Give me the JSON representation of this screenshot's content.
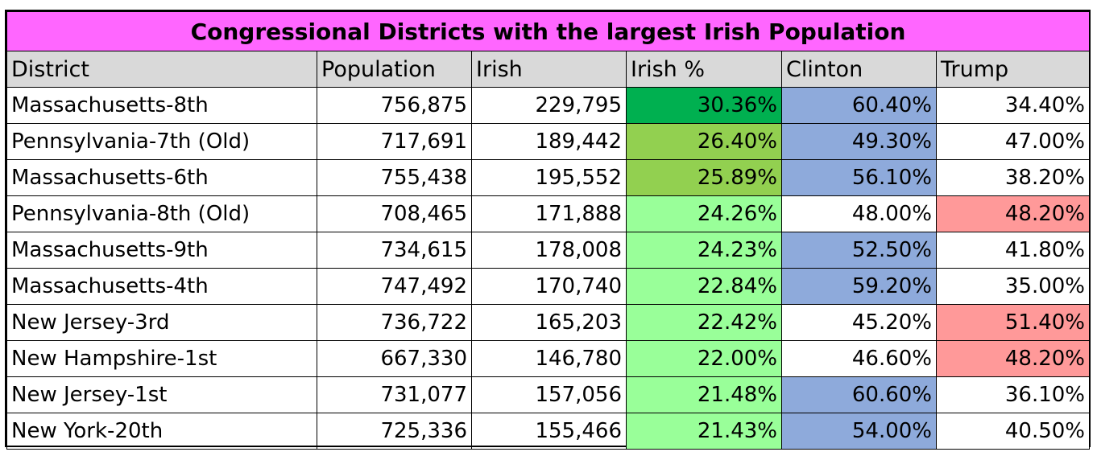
{
  "title": "Congressional Districts with the largest Irish Population",
  "columns": [
    "District",
    "Population",
    "Irish",
    "Irish %",
    "Clinton",
    "Trump"
  ],
  "colors": {
    "title_bg": "#ff66ff",
    "header_bg": "#d9d9d9",
    "irish_dark_green": "#00b050",
    "irish_mid_green": "#92d050",
    "irish_light_green": "#99ff99",
    "clinton_blue": "#8eaadb",
    "trump_red": "#ff9999",
    "plain": "#ffffff"
  },
  "rows": [
    {
      "district": "Massachusetts-8th",
      "population": "756,875",
      "irish": "229,795",
      "irish_pct": "30.36%",
      "clinton": "60.40%",
      "trump": "34.40%",
      "irish_color": "#00b050",
      "clinton_color": "#8eaadb",
      "trump_color": "#ffffff"
    },
    {
      "district": "Pennsylvania-7th (Old)",
      "population": "717,691",
      "irish": "189,442",
      "irish_pct": "26.40%",
      "clinton": "49.30%",
      "trump": "47.00%",
      "irish_color": "#92d050",
      "clinton_color": "#8eaadb",
      "trump_color": "#ffffff"
    },
    {
      "district": "Massachusetts-6th",
      "population": "755,438",
      "irish": "195,552",
      "irish_pct": "25.89%",
      "clinton": "56.10%",
      "trump": "38.20%",
      "irish_color": "#92d050",
      "clinton_color": "#8eaadb",
      "trump_color": "#ffffff"
    },
    {
      "district": "Pennsylvania-8th (Old)",
      "population": "708,465",
      "irish": "171,888",
      "irish_pct": "24.26%",
      "clinton": "48.00%",
      "trump": "48.20%",
      "irish_color": "#99ff99",
      "clinton_color": "#ffffff",
      "trump_color": "#ff9999"
    },
    {
      "district": "Massachusetts-9th",
      "population": "734,615",
      "irish": "178,008",
      "irish_pct": "24.23%",
      "clinton": "52.50%",
      "trump": "41.80%",
      "irish_color": "#99ff99",
      "clinton_color": "#8eaadb",
      "trump_color": "#ffffff"
    },
    {
      "district": "Massachusetts-4th",
      "population": "747,492",
      "irish": "170,740",
      "irish_pct": "22.84%",
      "clinton": "59.20%",
      "trump": "35.00%",
      "irish_color": "#99ff99",
      "clinton_color": "#8eaadb",
      "trump_color": "#ffffff"
    },
    {
      "district": "New Jersey-3rd",
      "population": "736,722",
      "irish": "165,203",
      "irish_pct": "22.42%",
      "clinton": "45.20%",
      "trump": "51.40%",
      "irish_color": "#99ff99",
      "clinton_color": "#ffffff",
      "trump_color": "#ff9999"
    },
    {
      "district": "New Hampshire-1st",
      "population": "667,330",
      "irish": "146,780",
      "irish_pct": "22.00%",
      "clinton": "46.60%",
      "trump": "48.20%",
      "irish_color": "#99ff99",
      "clinton_color": "#ffffff",
      "trump_color": "#ff9999"
    },
    {
      "district": "New Jersey-1st",
      "population": "731,077",
      "irish": "157,056",
      "irish_pct": "21.48%",
      "clinton": "60.60%",
      "trump": "36.10%",
      "irish_color": "#99ff99",
      "clinton_color": "#8eaadb",
      "trump_color": "#ffffff"
    },
    {
      "district": "New York-20th",
      "population": "725,336",
      "irish": "155,466",
      "irish_pct": "21.43%",
      "clinton": "54.00%",
      "trump": "40.50%",
      "irish_color": "#99ff99",
      "clinton_color": "#8eaadb",
      "trump_color": "#ffffff"
    }
  ]
}
